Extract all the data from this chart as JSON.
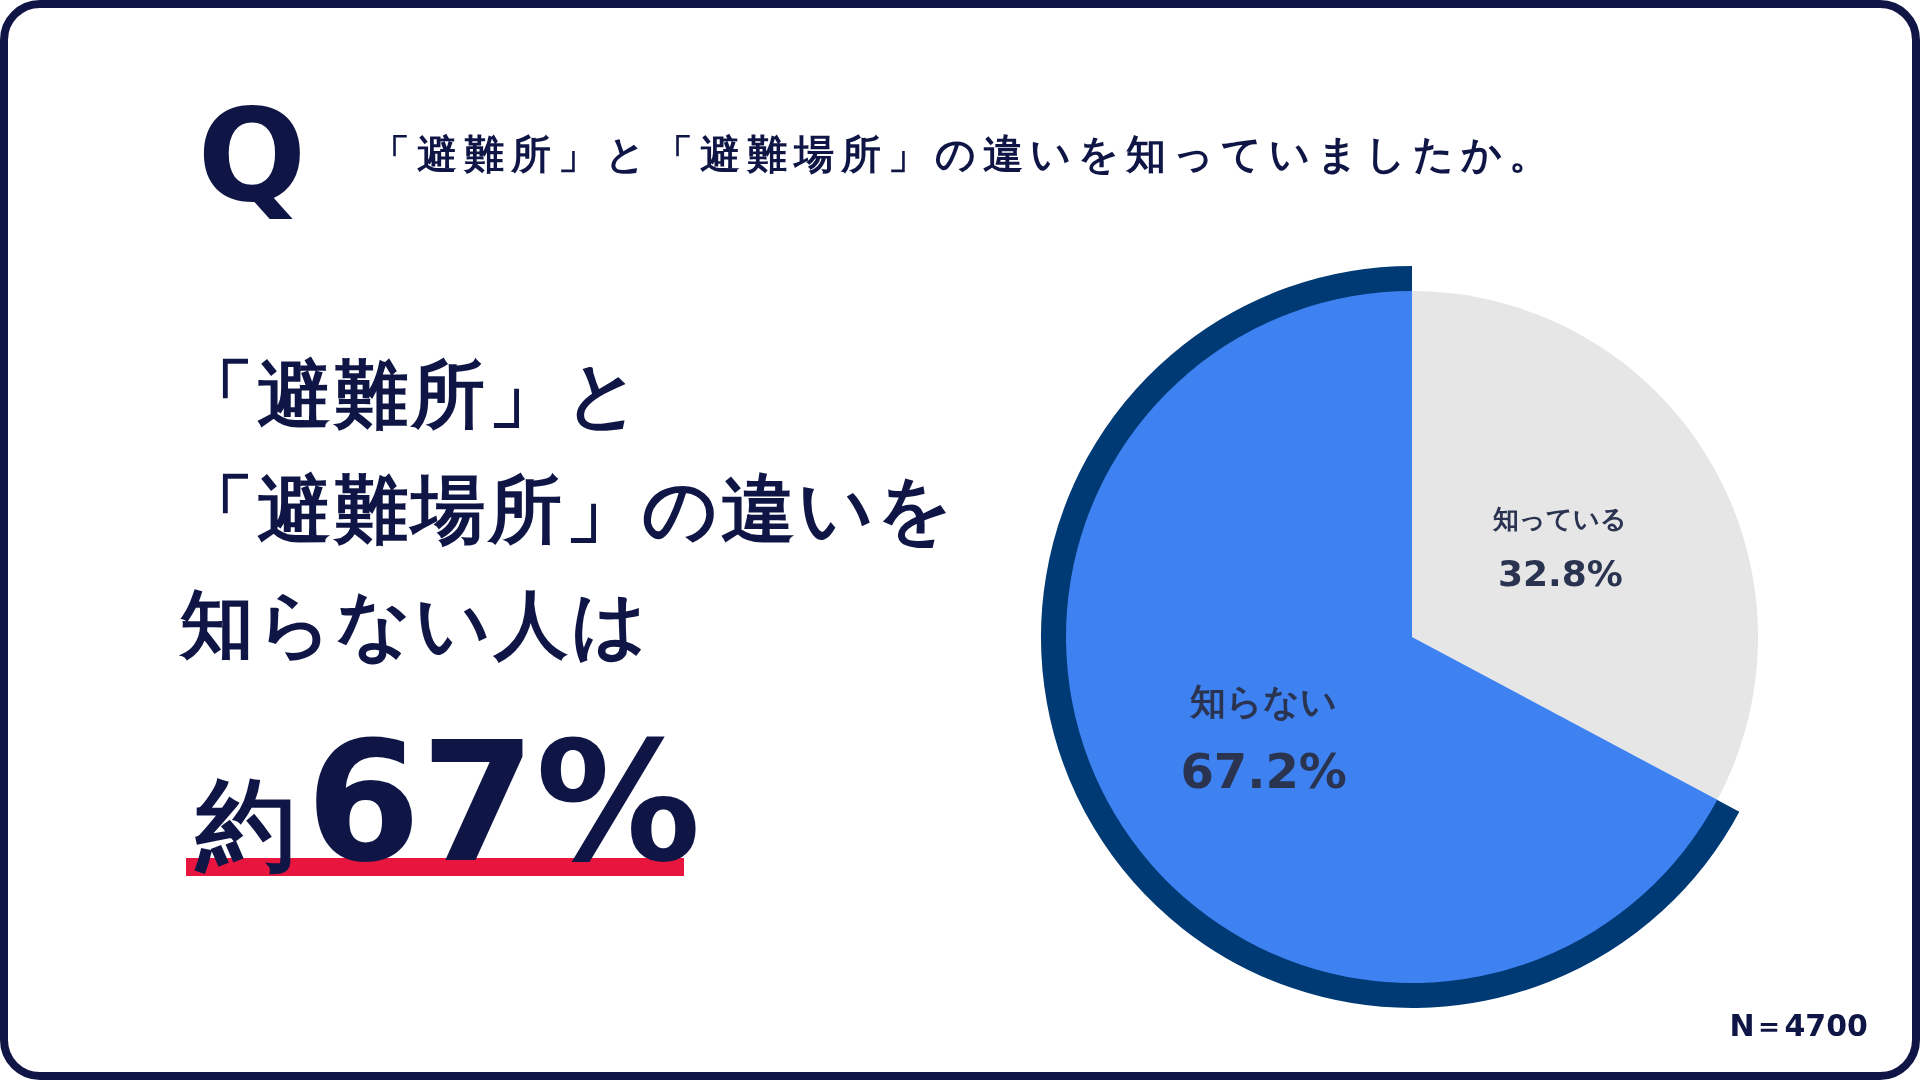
{
  "chart_data": {
    "type": "pie",
    "title": "「避難所」と「避難場所」の違いを知っていましたか。",
    "categories": [
      "知っている",
      "知らない"
    ],
    "values": [
      32.8,
      67.2
    ],
    "colors": [
      "#e6e6e6",
      "#3d82f0"
    ],
    "value_labels": [
      "32.8%",
      "67.2%"
    ],
    "annotations": [
      "Q",
      "「避難所」と",
      "「避難場所」の違いを",
      "知らない人は",
      "約67%",
      "N＝4700"
    ]
  }
}
